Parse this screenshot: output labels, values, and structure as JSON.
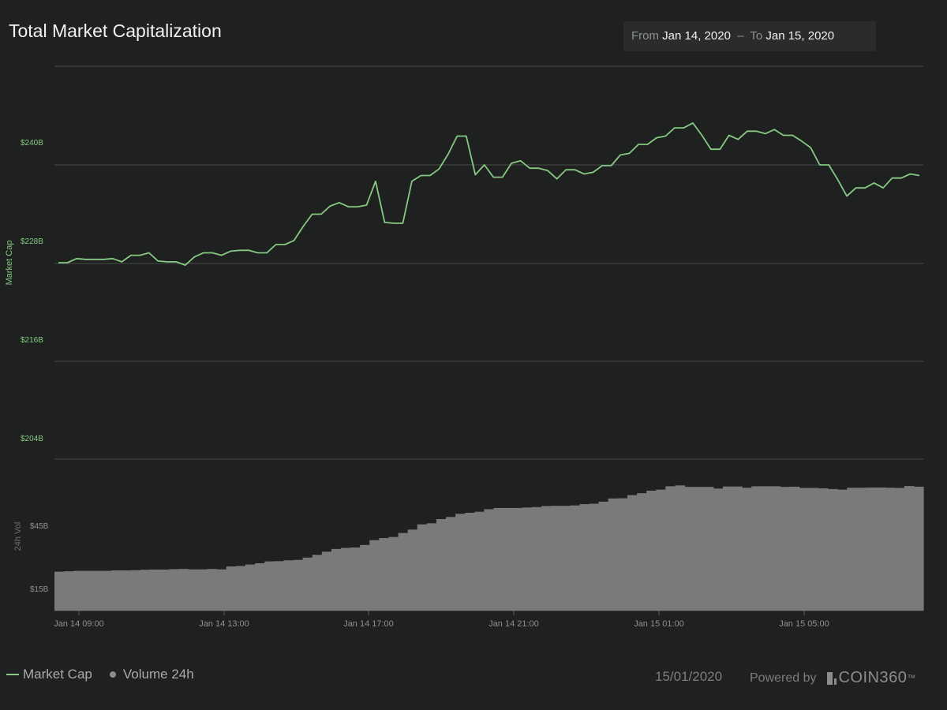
{
  "header": {
    "title": "Total Market Capitalization",
    "range_from_label": "From",
    "range_from_value": "Jan 14, 2020",
    "range_sep": "–",
    "range_to_label": "To",
    "range_to_value": "Jan 15, 2020"
  },
  "footer": {
    "legend_market_cap": "Market Cap",
    "legend_volume": "Volume 24h",
    "date": "15/01/2020",
    "powered_by": "Powered by",
    "brand": "COIN360",
    "brand_mark": "™"
  },
  "colors": {
    "background": "#1f2020",
    "market_cap_line": "#86c982",
    "volume_bars": "#7a7a7a",
    "grid": "#4a4c4c",
    "axis_text": "#8f9191",
    "green_axis_text": "#86c982"
  },
  "chart_data": [
    {
      "type": "line",
      "title": "",
      "ylabel": "Market Cap",
      "ylim": [
        204,
        240
      ],
      "y_ticks": [
        240,
        228,
        216,
        204
      ],
      "y_tick_labels": [
        "$240B",
        "$228B",
        "$216B",
        "$204B"
      ],
      "x_tick_labels": [
        "Jan 14 09:00",
        "Jan 14 13:00",
        "Jan 14 17:00",
        "Jan 14 21:00",
        "Jan 15 01:00",
        "Jan 15 05:00"
      ],
      "grid": true,
      "series": [
        {
          "name": "Market Cap",
          "values": [
            228.1,
            228.1,
            228.6,
            228.5,
            228.5,
            228.5,
            228.6,
            228.2,
            229.0,
            229.0,
            229.3,
            228.3,
            228.2,
            228.2,
            227.8,
            228.8,
            229.3,
            229.3,
            229.0,
            229.5,
            229.6,
            229.6,
            229.3,
            229.3,
            230.3,
            230.3,
            230.8,
            232.5,
            234.0,
            234.0,
            235.0,
            235.4,
            234.9,
            234.9,
            235.1,
            238.0,
            233.0,
            232.9,
            232.9,
            238.0,
            238.7,
            238.7,
            239.5,
            241.3,
            243.5,
            243.5,
            238.8,
            240.0,
            238.5,
            238.5,
            240.2,
            240.5,
            239.6,
            239.6,
            239.3,
            238.3,
            239.4,
            239.4,
            238.9,
            239.1,
            239.9,
            239.9,
            241.2,
            241.4,
            242.5,
            242.5,
            243.3,
            243.5,
            244.5,
            244.5,
            245.1,
            243.6,
            241.9,
            241.9,
            243.6,
            243.1,
            244.1,
            244.1,
            243.8,
            244.3,
            243.6,
            243.6,
            242.9,
            242.1,
            240.0,
            240.0,
            238.2,
            236.2,
            237.2,
            237.2,
            237.8,
            237.2,
            238.4,
            238.4,
            238.9,
            238.7
          ]
        }
      ]
    },
    {
      "type": "bar",
      "title": "",
      "ylabel": "24h Vol",
      "y_ticks": [
        45,
        15
      ],
      "y_tick_labels": [
        "$45B",
        "$15B"
      ],
      "series": [
        {
          "name": "Volume 24h",
          "values": [
            23.0,
            23.2,
            23.4,
            23.4,
            23.4,
            23.4,
            23.6,
            23.6,
            23.7,
            23.9,
            24.0,
            24.0,
            24.2,
            24.3,
            24.1,
            24.1,
            24.3,
            24.1,
            25.5,
            25.7,
            26.4,
            27.0,
            27.9,
            28.0,
            28.4,
            28.6,
            29.7,
            31.0,
            32.5,
            33.8,
            34.3,
            34.5,
            35.7,
            38.0,
            39.0,
            39.5,
            41.4,
            43.0,
            45.5,
            46.0,
            48.0,
            49.0,
            50.5,
            51.0,
            51.5,
            52.7,
            53.3,
            53.3,
            53.3,
            53.5,
            53.7,
            54.2,
            54.3,
            54.3,
            54.5,
            55.1,
            55.3,
            56.3,
            57.8,
            57.9,
            59.4,
            60.3,
            61.5,
            62.0,
            63.6,
            64.0,
            63.3,
            63.3,
            63.3,
            62.5,
            63.5,
            63.5,
            62.9,
            63.6,
            63.6,
            63.6,
            63.3,
            63.4,
            62.8,
            62.8,
            62.6,
            62.3,
            62.0,
            62.9,
            62.9,
            63.0,
            63.0,
            62.9,
            62.8,
            63.7,
            63.4
          ]
        }
      ]
    }
  ]
}
